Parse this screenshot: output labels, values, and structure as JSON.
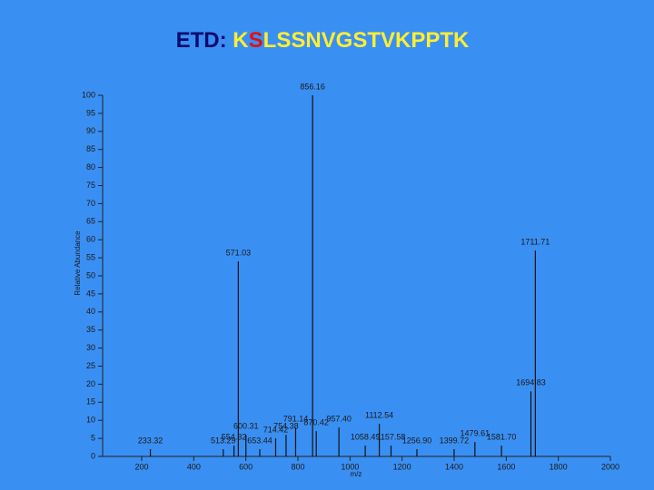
{
  "chart_data": {
    "type": "bar",
    "title": [
      {
        "text": "ETD: ",
        "color": "#0a0a6e"
      },
      {
        "text": "K",
        "color": "#ffee33"
      },
      {
        "text": "S",
        "color": "#e01010"
      },
      {
        "text": "LSSNVGSTVKPPTK",
        "color": "#ffee33"
      }
    ],
    "xlabel": "m/z",
    "ylabel": "Relative Abundance",
    "x": [
      233.32,
      513.29,
      554.32,
      571.03,
      600.31,
      653.44,
      714.42,
      754.38,
      791.14,
      856.16,
      870.42,
      957.4,
      1058.49,
      1112.54,
      1157.58,
      1256.9,
      1399.72,
      1479.61,
      1581.7,
      1694.83,
      1711.71
    ],
    "value_labels": [
      "233.32",
      "513.29",
      "554.32",
      "571.03",
      "600.31",
      "653.44",
      "714.42",
      "754.38",
      "791.14",
      "856.16",
      "870.42",
      "957.40",
      "1058.49",
      "1112.54",
      "1157.58",
      "1256.90",
      "1399.72",
      "1479.61",
      "1581.70",
      "1694.83",
      "1711.71"
    ],
    "values": [
      2,
      2,
      3,
      54,
      6,
      2,
      5,
      6,
      8,
      100,
      7,
      8,
      3,
      9,
      3,
      2,
      2,
      4,
      3,
      18,
      57
    ],
    "color": "#111111",
    "xlim": [
      50,
      2000
    ],
    "xticks": [
      200,
      400,
      600,
      800,
      1000,
      1200,
      1400,
      1600,
      1800,
      2000
    ],
    "ylim": [
      0,
      100
    ],
    "yticks": [
      0,
      5,
      10,
      15,
      20,
      25,
      30,
      35,
      40,
      45,
      50,
      55,
      60,
      65,
      70,
      75,
      80,
      85,
      90,
      95,
      100
    ]
  }
}
